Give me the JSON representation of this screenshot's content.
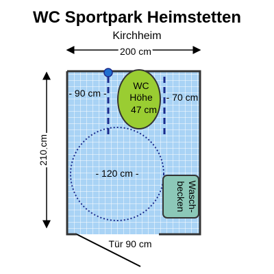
{
  "title": "WC Sportpark Heimstetten",
  "subtitle": "Kirchheim",
  "dimensions": {
    "width": "200 cm",
    "height": "210 cm",
    "left_clearance": "- 90 cm -",
    "right_clearance": "- 70 cm",
    "turning_circle": "- 120 cm -",
    "door": "Tür 90 cm"
  },
  "wc": {
    "line1": "WC",
    "line2": "Höhe",
    "line3": "47 cm"
  },
  "sink": {
    "line1": "Wasch-",
    "line2": "becken"
  },
  "colors": {
    "floor": "#a9d3f5",
    "grid": "#ffffff",
    "wall": "#333333",
    "wc_fill": "#9acd32",
    "sink_fill": "#8cc8b8",
    "marker": "#1f6fd0",
    "dash": "#1a2a8c"
  }
}
